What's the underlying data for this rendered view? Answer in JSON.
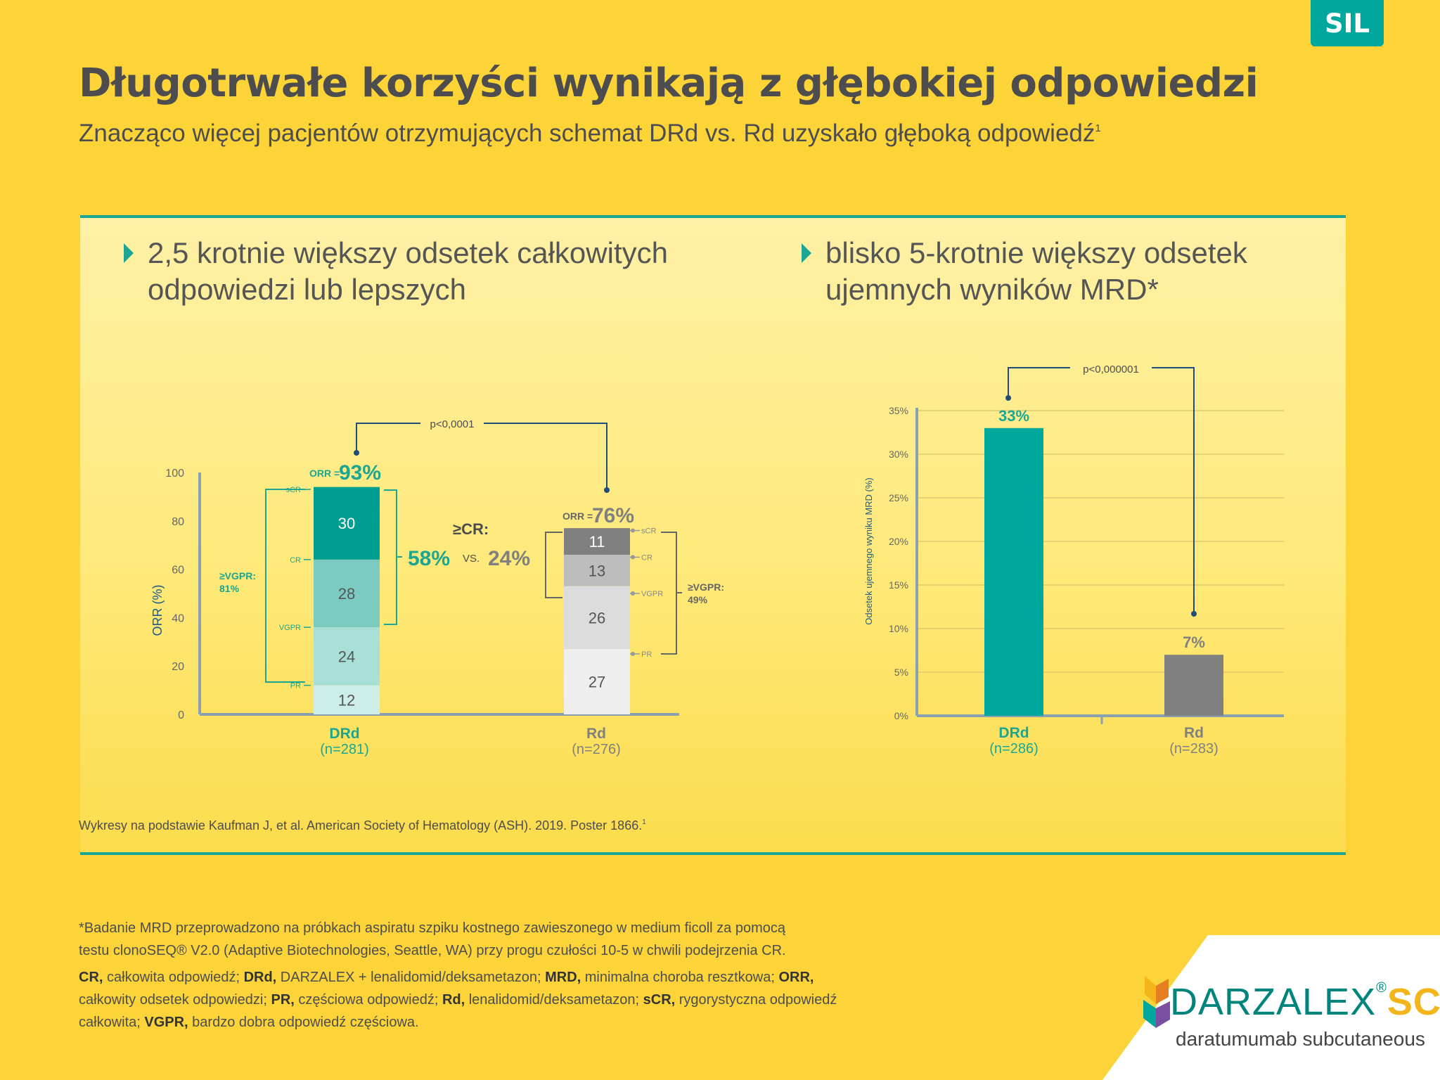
{
  "badge": "SIL",
  "title": "Długotrwałe korzyści wynikają z głębokiej odpowiedzi",
  "subtitle": "Znacząco więcej pacjentów otrzymujących schemat DRd vs. Rd uzyskało głęboką odpowiedź",
  "subtitle_ref": "1",
  "left_heading": [
    "2,5 krotnie większy odsetek całkowitych",
    "odpowiedzi lub lepszych"
  ],
  "right_heading": [
    "blisko 5-krotnie większy odsetek",
    "ujemnych wyników MRD*"
  ],
  "chart_data": [
    {
      "type": "bar",
      "stacked": true,
      "ylabel": "ORR (%)",
      "ylim": [
        0,
        100
      ],
      "yticks": [
        "0",
        "20",
        "40",
        "60",
        "80",
        "100"
      ],
      "categories": [
        "DRd",
        "Rd"
      ],
      "category_n": [
        "(n=281)",
        "(n=276)"
      ],
      "series": [
        {
          "name": "PR",
          "values": [
            12,
            27
          ],
          "labels": [
            "12",
            "27"
          ],
          "colors": [
            "#cdeee8",
            "#eeeeee"
          ]
        },
        {
          "name": "VGPR",
          "values": [
            24,
            26
          ],
          "labels": [
            "24",
            "26"
          ],
          "colors": [
            "#a8e0d8",
            "#dcdcdc"
          ]
        },
        {
          "name": "CR",
          "values": [
            28,
            13
          ],
          "labels": [
            "28",
            "13"
          ],
          "colors": [
            "#7ccbc2",
            "#bdbdbd"
          ]
        },
        {
          "name": "sCR",
          "values": [
            30,
            11
          ],
          "labels": [
            "30",
            "11"
          ],
          "colors": [
            "#009e91",
            "#808080"
          ]
        }
      ],
      "level_labels": [
        "sCR",
        "CR",
        "VGPR",
        "PR"
      ],
      "orr_prefix": "ORR =",
      "orr": [
        "93%",
        "76%"
      ],
      "vgpr_label": [
        "≥VGPR:",
        "81%",
        "≥VGPR:",
        "49%"
      ],
      "cr_label": "≥CR:",
      "cr_drd": "58%",
      "cr_vs": "VS.",
      "cr_rd": "24%",
      "pvalue": "p<0,0001"
    },
    {
      "type": "bar",
      "ylabel": "Odsetek ujemnego wyniku MRD (%)",
      "ylim": [
        0,
        35
      ],
      "yticks": [
        "0%",
        "5%",
        "10%",
        "15%",
        "20%",
        "25%",
        "30%",
        "35%"
      ],
      "categories": [
        "DRd",
        "Rd"
      ],
      "category_n": [
        "(n=286)",
        "(n=283)"
      ],
      "values": [
        33,
        7
      ],
      "value_labels": [
        "33%",
        "7%"
      ],
      "colors": [
        "#00a79d",
        "#808080"
      ],
      "pvalue": "p<0,000001"
    }
  ],
  "source_note": "Wykresy na podstawie Kaufman J, et al. American Society of Hematology (ASH). 2019. Poster 1866.",
  "source_ref": "1",
  "footnote_mrd": [
    "*Badanie MRD przeprowadzono na próbkach aspiratu szpiku kostnego zawieszonego w medium ficoll za pomocą",
    "testu clonoSEQ® V2.0 (Adaptive Biotechnologies, Seattle, WA) przy progu czułości 10-5 w chwili podejrzenia CR."
  ],
  "abbreviations": [
    {
      "abbr": "CR,",
      "text": " całkowita odpowiedź; "
    },
    {
      "abbr": "DRd,",
      "text": " DARZALEX + lenalidomid/deksametazon; "
    },
    {
      "abbr": "MRD,",
      "text": " minimalna choroba resztkowa; "
    },
    {
      "abbr": "ORR,",
      "text": " całkowity odsetek odpowiedzi; "
    },
    {
      "abbr": "PR,",
      "text": " częściowa odpowiedź; "
    },
    {
      "abbr": "Rd,",
      "text": " lenalidomid/deksametazon; "
    },
    {
      "abbr": "sCR,",
      "text": " rygorystyczna odpowiedź całkowita; "
    },
    {
      "abbr": "VGPR,",
      "text": " bardzo dobra odpowiedź częściowa."
    }
  ],
  "logo": {
    "name": "DARZALEX",
    "reg": "®",
    "suffix": "SC",
    "sub": "daratumumab subcutaneous"
  },
  "colors": {
    "teal": "#00a79d",
    "gray": "#808080",
    "yellow": "#fdd437"
  }
}
